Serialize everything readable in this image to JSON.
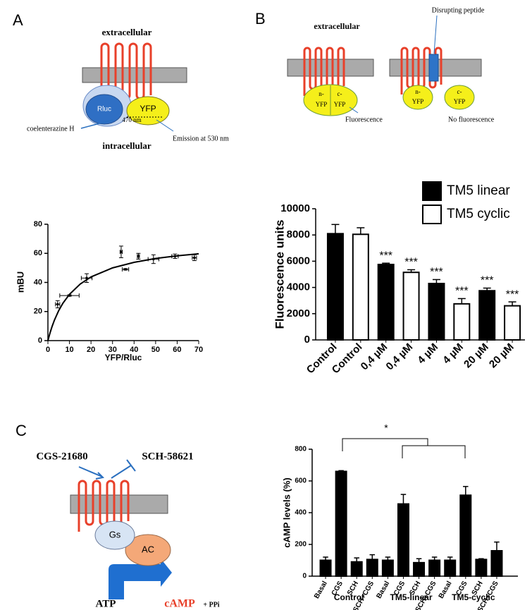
{
  "panels": {
    "A": {
      "label": "A",
      "extracellular": "extracellular",
      "rluc": "Rluc",
      "yfp": "YFP",
      "substrate": "coelenterazine H",
      "excitation": "470 nm",
      "emission": "Emission at 530 nm",
      "intracellular": "intracellular"
    },
    "B": {
      "label": "B",
      "extracellular": "extracellular",
      "peptide": "Disrupting peptide",
      "left": {
        "n": "n-",
        "n_yfp": "YFP",
        "c": "c-",
        "c_yfp": "YFP",
        "result": "Fluorescence"
      },
      "right": {
        "n": "n-",
        "n_yfp": "YFP",
        "c": "c-",
        "c_yfp": "YFP",
        "result": "No fluorescence"
      }
    },
    "C": {
      "label": "C",
      "agonist": "CGS-21680",
      "antagonist": "SCH-58621",
      "gs": "Gs",
      "ac": "AC",
      "substrate": "ATP",
      "product": "cAMP",
      "byproduct": "+ PPi"
    }
  },
  "chart_data": [
    {
      "type": "scatter",
      "xlabel": "YFP/Rluc",
      "ylabel": "mBU",
      "color": "#000000",
      "x": [
        4.5,
        10,
        18,
        34,
        36,
        42,
        49,
        59,
        68
      ],
      "values": [
        25,
        31,
        43,
        61,
        49,
        58,
        56,
        58,
        57
      ],
      "xerr": [
        1,
        4.5,
        2.5,
        0.5,
        1.5,
        0.5,
        2.5,
        1.5,
        1
      ],
      "yerr": [
        2.5,
        0.5,
        3,
        4,
        0.5,
        2,
        3,
        1.5,
        2
      ],
      "fit": {
        "x": [
          0,
          1,
          2,
          3,
          5,
          7,
          10,
          15,
          20,
          30,
          40,
          50,
          60,
          70
        ],
        "values": [
          0,
          5.38,
          10,
          14,
          20.6,
          25.8,
          31.8,
          38.9,
          43.8,
          50,
          53.8,
          56.5,
          58.3,
          59.7
        ]
      },
      "xlim": [
        0,
        70
      ],
      "xticks": [
        0,
        10,
        20,
        30,
        40,
        50,
        60,
        70
      ],
      "ylim": [
        0,
        80
      ],
      "yticks": [
        0,
        20,
        40,
        60,
        80
      ]
    },
    {
      "type": "bar",
      "ylabel": "Fluorescence units",
      "legend": "top-right",
      "categories": [
        "Control",
        "Control",
        "0,4 µM",
        "0,4 µM",
        "4 µM",
        "4 µM",
        "20 µM",
        "20 µM"
      ],
      "series": [
        {
          "name": "TM5 linear",
          "color": "#000000",
          "values": [
            8100,
            null,
            5750,
            null,
            4300,
            null,
            3750,
            null
          ],
          "errors": [
            700,
            null,
            100,
            null,
            300,
            null,
            200,
            null
          ]
        },
        {
          "name": "TM5 cyclic",
          "color": "#ffffff",
          "values": [
            null,
            8050,
            null,
            5150,
            null,
            2750,
            null,
            2600
          ],
          "errors": [
            null,
            500,
            null,
            200,
            null,
            400,
            null,
            300
          ]
        }
      ],
      "annotations": [
        null,
        null,
        "***",
        "***",
        "***",
        "***",
        "***",
        "***"
      ],
      "ylim": [
        0,
        10000
      ],
      "yticks": [
        0,
        2000,
        4000,
        6000,
        8000,
        10000
      ]
    },
    {
      "type": "bar",
      "ylabel": "cAMP levels (%)",
      "color": "#000000",
      "categories": [
        "Basal",
        "CGS",
        "SCH",
        "SCH+CGS",
        "Basal",
        "CGS",
        "SCH",
        "SCH+CGS",
        "Basal",
        "CGS",
        "SCH",
        "SCH+CGS"
      ],
      "groups": [
        "Control",
        "TM5-linear",
        "TM5-cyclic"
      ],
      "values": [
        100,
        660,
        90,
        105,
        100,
        455,
        85,
        100,
        100,
        510,
        105,
        160
      ],
      "errors": [
        20,
        5,
        25,
        30,
        20,
        60,
        25,
        20,
        20,
        55,
        5,
        55
      ],
      "annotation": "*",
      "ylim": [
        0,
        800
      ],
      "yticks": [
        0,
        200,
        400,
        600,
        800
      ]
    }
  ]
}
